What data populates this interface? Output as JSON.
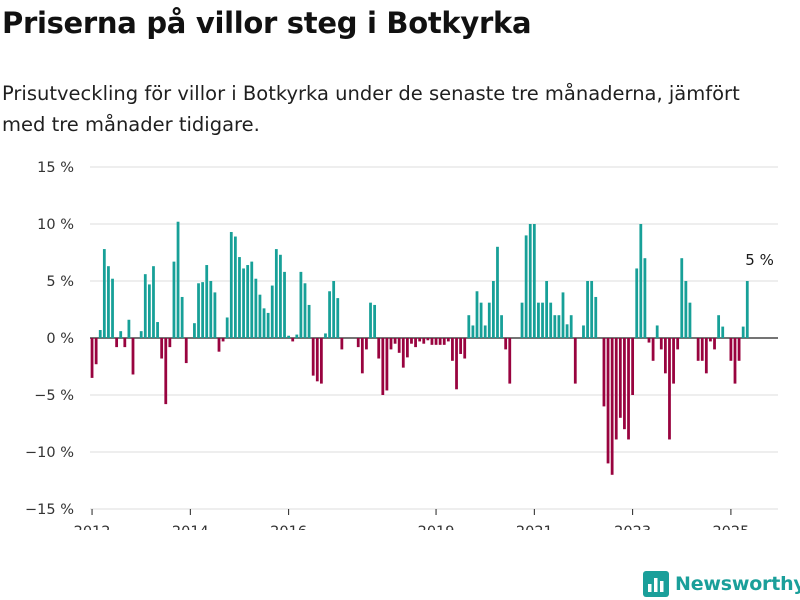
{
  "title": "Priserna på villor steg i Botkyrka",
  "subtitle": "Prisutveckling för villor i Botkyrka under de senaste tre månaderna, jämfört med tre månader tidigare.",
  "brand": {
    "name": "Newsworthy",
    "icon": "bar-chart-logo-icon"
  },
  "colors": {
    "positive": "#17a098",
    "negative": "#99033f",
    "grid": "#dddddd",
    "brand": "#1a9f9a"
  },
  "chart_data": {
    "type": "bar",
    "x_start": "2012-01",
    "x_end": "2025-12",
    "ylim": [
      -15,
      15
    ],
    "y_ticks": [
      15,
      10,
      5,
      0,
      -5,
      -10,
      -15
    ],
    "y_tick_labels": [
      "15 %",
      "10 %",
      "5 %",
      "0 %",
      "−5 %",
      "−10 %",
      "−15 %"
    ],
    "x_tick_labels": [
      {
        "date": "2012-01",
        "label": "2012"
      },
      {
        "date": "2014-01",
        "label": "2014"
      },
      {
        "date": "2016-01",
        "label": "2016"
      },
      {
        "date": "2019-01",
        "label": "2019"
      },
      {
        "date": "2021-01",
        "label": "2021"
      },
      {
        "date": "2023-01",
        "label": "2023"
      },
      {
        "date": "2025-01",
        "label": "2025"
      }
    ],
    "annotation": {
      "date": "2025-08",
      "value": 5,
      "text": "5 %"
    },
    "grid": true,
    "legend": "none",
    "points": [
      {
        "date": "2012-01",
        "value": -3.5
      },
      {
        "date": "2012-02",
        "value": -2.3
      },
      {
        "date": "2012-03",
        "value": 0.7
      },
      {
        "date": "2012-04",
        "value": 7.8
      },
      {
        "date": "2012-05",
        "value": 6.3
      },
      {
        "date": "2012-06",
        "value": 5.2
      },
      {
        "date": "2012-07",
        "value": -0.8
      },
      {
        "date": "2012-08",
        "value": 0.6
      },
      {
        "date": "2012-09",
        "value": -0.8
      },
      {
        "date": "2012-10",
        "value": 1.6
      },
      {
        "date": "2012-11",
        "value": -3.2
      },
      {
        "date": "2013-01",
        "value": 0.6
      },
      {
        "date": "2013-02",
        "value": 5.6
      },
      {
        "date": "2013-03",
        "value": 4.7
      },
      {
        "date": "2013-04",
        "value": 6.3
      },
      {
        "date": "2013-05",
        "value": 1.4
      },
      {
        "date": "2013-06",
        "value": -1.8
      },
      {
        "date": "2013-07",
        "value": -5.8
      },
      {
        "date": "2013-08",
        "value": -0.8
      },
      {
        "date": "2013-09",
        "value": 6.7
      },
      {
        "date": "2013-10",
        "value": 10.2
      },
      {
        "date": "2013-11",
        "value": 3.6
      },
      {
        "date": "2013-12",
        "value": -2.2
      },
      {
        "date": "2014-02",
        "value": 1.3
      },
      {
        "date": "2014-03",
        "value": 4.8
      },
      {
        "date": "2014-04",
        "value": 4.9
      },
      {
        "date": "2014-05",
        "value": 6.4
      },
      {
        "date": "2014-06",
        "value": 5.0
      },
      {
        "date": "2014-07",
        "value": 4.0
      },
      {
        "date": "2014-08",
        "value": -1.2
      },
      {
        "date": "2014-09",
        "value": -0.3
      },
      {
        "date": "2014-10",
        "value": 1.8
      },
      {
        "date": "2014-11",
        "value": 9.3
      },
      {
        "date": "2014-12",
        "value": 8.9
      },
      {
        "date": "2015-01",
        "value": 7.1
      },
      {
        "date": "2015-02",
        "value": 6.1
      },
      {
        "date": "2015-03",
        "value": 6.4
      },
      {
        "date": "2015-04",
        "value": 6.7
      },
      {
        "date": "2015-05",
        "value": 5.2
      },
      {
        "date": "2015-06",
        "value": 3.8
      },
      {
        "date": "2015-07",
        "value": 2.6
      },
      {
        "date": "2015-08",
        "value": 2.2
      },
      {
        "date": "2015-09",
        "value": 4.6
      },
      {
        "date": "2015-10",
        "value": 7.8
      },
      {
        "date": "2015-11",
        "value": 7.3
      },
      {
        "date": "2015-12",
        "value": 5.8
      },
      {
        "date": "2016-01",
        "value": 0.2
      },
      {
        "date": "2016-02",
        "value": -0.3
      },
      {
        "date": "2016-03",
        "value": 0.3
      },
      {
        "date": "2016-04",
        "value": 5.8
      },
      {
        "date": "2016-05",
        "value": 4.8
      },
      {
        "date": "2016-06",
        "value": 2.9
      },
      {
        "date": "2016-07",
        "value": -3.3
      },
      {
        "date": "2016-08",
        "value": -3.8
      },
      {
        "date": "2016-09",
        "value": -4.0
      },
      {
        "date": "2016-10",
        "value": 0.4
      },
      {
        "date": "2016-11",
        "value": 4.1
      },
      {
        "date": "2016-12",
        "value": 5.0
      },
      {
        "date": "2017-01",
        "value": 3.5
      },
      {
        "date": "2017-02",
        "value": -1.0
      },
      {
        "date": "2017-06",
        "value": -0.8
      },
      {
        "date": "2017-07",
        "value": -3.1
      },
      {
        "date": "2017-08",
        "value": -1.0
      },
      {
        "date": "2017-09",
        "value": 3.1
      },
      {
        "date": "2017-10",
        "value": 2.9
      },
      {
        "date": "2017-11",
        "value": -1.8
      },
      {
        "date": "2017-12",
        "value": -5.0
      },
      {
        "date": "2018-01",
        "value": -4.6
      },
      {
        "date": "2018-02",
        "value": -1.0
      },
      {
        "date": "2018-03",
        "value": -0.5
      },
      {
        "date": "2018-04",
        "value": -1.3
      },
      {
        "date": "2018-05",
        "value": -2.6
      },
      {
        "date": "2018-06",
        "value": -1.7
      },
      {
        "date": "2018-07",
        "value": -0.5
      },
      {
        "date": "2018-08",
        "value": -0.8
      },
      {
        "date": "2018-09",
        "value": -0.3
      },
      {
        "date": "2018-10",
        "value": -0.5
      },
      {
        "date": "2018-11",
        "value": -0.2
      },
      {
        "date": "2018-12",
        "value": -0.6
      },
      {
        "date": "2019-01",
        "value": -0.6
      },
      {
        "date": "2019-02",
        "value": -0.6
      },
      {
        "date": "2019-03",
        "value": -0.6
      },
      {
        "date": "2019-04",
        "value": -0.3
      },
      {
        "date": "2019-05",
        "value": -2.0
      },
      {
        "date": "2019-06",
        "value": -4.5
      },
      {
        "date": "2019-07",
        "value": -1.4
      },
      {
        "date": "2019-08",
        "value": -1.8
      },
      {
        "date": "2019-09",
        "value": 2.0
      },
      {
        "date": "2019-10",
        "value": 1.1
      },
      {
        "date": "2019-11",
        "value": 4.1
      },
      {
        "date": "2019-12",
        "value": 3.1
      },
      {
        "date": "2020-01",
        "value": 1.1
      },
      {
        "date": "2020-02",
        "value": 3.1
      },
      {
        "date": "2020-03",
        "value": 5.0
      },
      {
        "date": "2020-04",
        "value": 8.0
      },
      {
        "date": "2020-05",
        "value": 2.0
      },
      {
        "date": "2020-06",
        "value": -1.0
      },
      {
        "date": "2020-07",
        "value": -4.0
      },
      {
        "date": "2020-10",
        "value": 3.1
      },
      {
        "date": "2020-11",
        "value": 9.0
      },
      {
        "date": "2020-12",
        "value": 10.0
      },
      {
        "date": "2021-01",
        "value": 10.0
      },
      {
        "date": "2021-02",
        "value": 3.1
      },
      {
        "date": "2021-03",
        "value": 3.1
      },
      {
        "date": "2021-04",
        "value": 5.0
      },
      {
        "date": "2021-05",
        "value": 3.1
      },
      {
        "date": "2021-06",
        "value": 2.0
      },
      {
        "date": "2021-07",
        "value": 2.0
      },
      {
        "date": "2021-08",
        "value": 4.0
      },
      {
        "date": "2021-09",
        "value": 1.2
      },
      {
        "date": "2021-10",
        "value": 2.0
      },
      {
        "date": "2021-11",
        "value": -4.0
      },
      {
        "date": "2022-01",
        "value": 1.1
      },
      {
        "date": "2022-02",
        "value": 5.0
      },
      {
        "date": "2022-03",
        "value": 5.0
      },
      {
        "date": "2022-04",
        "value": 3.6
      },
      {
        "date": "2022-06",
        "value": -6.0
      },
      {
        "date": "2022-07",
        "value": -11.0
      },
      {
        "date": "2022-08",
        "value": -12.0
      },
      {
        "date": "2022-09",
        "value": -8.9
      },
      {
        "date": "2022-10",
        "value": -7.0
      },
      {
        "date": "2022-11",
        "value": -8.0
      },
      {
        "date": "2022-12",
        "value": -8.9
      },
      {
        "date": "2023-01",
        "value": -5.0
      },
      {
        "date": "2023-02",
        "value": 6.1
      },
      {
        "date": "2023-03",
        "value": 10.0
      },
      {
        "date": "2023-04",
        "value": 7.0
      },
      {
        "date": "2023-05",
        "value": -0.4
      },
      {
        "date": "2023-06",
        "value": -2.0
      },
      {
        "date": "2023-07",
        "value": 1.1
      },
      {
        "date": "2023-08",
        "value": -1.0
      },
      {
        "date": "2023-09",
        "value": -3.1
      },
      {
        "date": "2023-10",
        "value": -8.9
      },
      {
        "date": "2023-11",
        "value": -4.0
      },
      {
        "date": "2023-12",
        "value": -1.0
      },
      {
        "date": "2024-01",
        "value": 7.0
      },
      {
        "date": "2024-02",
        "value": 5.0
      },
      {
        "date": "2024-03",
        "value": 3.1
      },
      {
        "date": "2024-05",
        "value": -2.0
      },
      {
        "date": "2024-06",
        "value": -2.0
      },
      {
        "date": "2024-07",
        "value": -3.1
      },
      {
        "date": "2024-08",
        "value": -0.3
      },
      {
        "date": "2024-09",
        "value": -1.0
      },
      {
        "date": "2024-10",
        "value": 2.0
      },
      {
        "date": "2024-11",
        "value": 1.0
      },
      {
        "date": "2025-01",
        "value": -2.0
      },
      {
        "date": "2025-02",
        "value": -4.0
      },
      {
        "date": "2025-03",
        "value": -2.0
      },
      {
        "date": "2025-04",
        "value": 1.0
      },
      {
        "date": "2025-05",
        "value": 5.0
      }
    ]
  }
}
